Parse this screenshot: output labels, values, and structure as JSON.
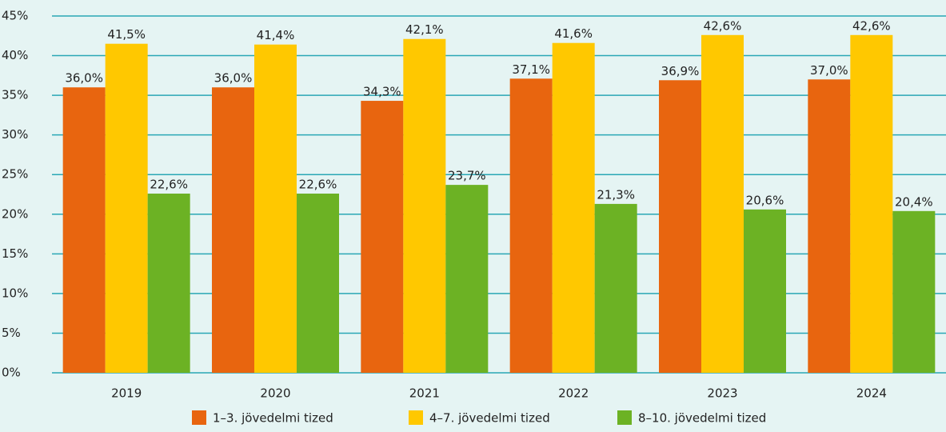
{
  "chart_data": {
    "type": "bar",
    "categories": [
      "2019",
      "2020",
      "2021",
      "2022",
      "2023",
      "2024"
    ],
    "series": [
      {
        "name": "1–3. jövedelmi tized",
        "color": "#e8650f",
        "values": [
          36.0,
          36.0,
          34.3,
          37.1,
          36.9,
          37.0
        ],
        "value_labels": [
          "36,0%",
          "36,0%",
          "34,3%",
          "37,1%",
          "36,9%",
          "37,0%"
        ]
      },
      {
        "name": "4–7. jövedelmi tized",
        "color": "#ffc800",
        "values": [
          41.5,
          41.4,
          42.1,
          41.6,
          42.6,
          42.6
        ],
        "value_labels": [
          "41,5%",
          "41,4%",
          "42,1%",
          "41,6%",
          "42,6%",
          "42,6%"
        ]
      },
      {
        "name": "8–10. jövedelmi tized",
        "color": "#6cb224",
        "values": [
          22.6,
          22.6,
          23.7,
          21.3,
          20.6,
          20.4
        ],
        "value_labels": [
          "22,6%",
          "22,6%",
          "23,7%",
          "21,3%",
          "20,6%",
          "20,4%"
        ]
      }
    ],
    "ylim": [
      0,
      45
    ],
    "yticks": [
      {
        "value": 0,
        "label": "0%"
      },
      {
        "value": 5,
        "label": "5%"
      },
      {
        "value": 10,
        "label": "10%"
      },
      {
        "value": 15,
        "label": "15%"
      },
      {
        "value": 20,
        "label": "20%"
      },
      {
        "value": 25,
        "label": "25%"
      },
      {
        "value": 30,
        "label": "30%"
      },
      {
        "value": 35,
        "label": "35%"
      },
      {
        "value": 40,
        "label": "40%"
      },
      {
        "value": 45,
        "label": "45%"
      }
    ],
    "grid": true,
    "legend": "bottom"
  }
}
